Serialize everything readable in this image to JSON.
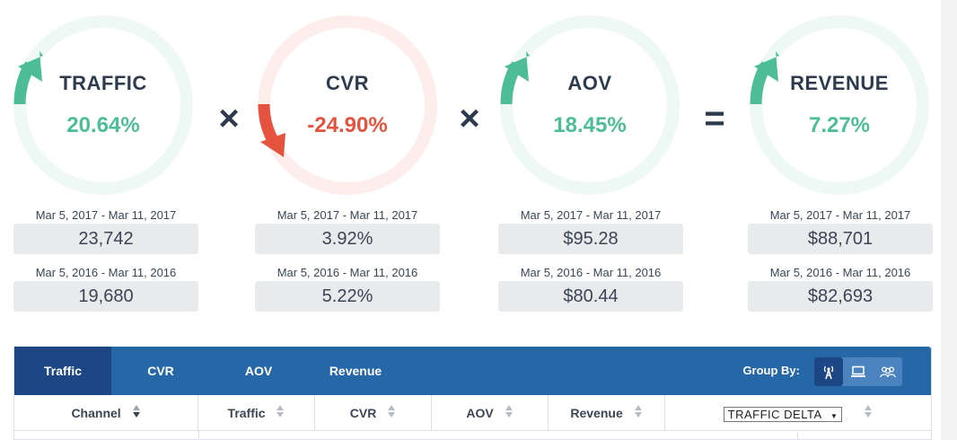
{
  "metrics": [
    {
      "name": "TRAFFIC",
      "pct": "20.64%",
      "trend": "up",
      "current_range": "Mar 5, 2017 - Mar 11, 2017",
      "current_value": "23,742",
      "prior_range": "Mar 5, 2016 - Mar 11, 2016",
      "prior_value": "19,680"
    },
    {
      "name": "CVR",
      "pct": "-24.90%",
      "trend": "down",
      "current_range": "Mar 5, 2017 - Mar 11, 2017",
      "current_value": "3.92%",
      "prior_range": "Mar 5, 2016 - Mar 11, 2016",
      "prior_value": "5.22%"
    },
    {
      "name": "AOV",
      "pct": "18.45%",
      "trend": "up",
      "current_range": "Mar 5, 2017 - Mar 11, 2017",
      "current_value": "$95.28",
      "prior_range": "Mar 5, 2016 - Mar 11, 2016",
      "prior_value": "$80.44"
    },
    {
      "name": "REVENUE",
      "pct": "7.27%",
      "trend": "up",
      "current_range": "Mar 5, 2017 - Mar 11, 2017",
      "current_value": "$88,701",
      "prior_range": "Mar 5, 2016 - Mar 11, 2016",
      "prior_value": "$82,693"
    }
  ],
  "operators": [
    "×",
    "×",
    "="
  ],
  "colors": {
    "up": "#4dbd98",
    "down": "#e5533f",
    "ring_up": "#eef8f5",
    "ring_down": "#fdeeec",
    "tab_bar": "#2667a8",
    "tab_active": "#1d4784"
  },
  "tabs": {
    "items": [
      "Traffic",
      "CVR",
      "AOV",
      "Revenue"
    ],
    "active": "Traffic"
  },
  "group_by": {
    "label": "Group By:",
    "icons": [
      "antenna-icon",
      "laptop-icon",
      "users-icon"
    ],
    "active": "antenna-icon"
  },
  "table": {
    "columns": [
      "Channel",
      "Traffic",
      "CVR",
      "AOV",
      "Revenue"
    ],
    "delta_select": "TRAFFIC DELTA"
  }
}
